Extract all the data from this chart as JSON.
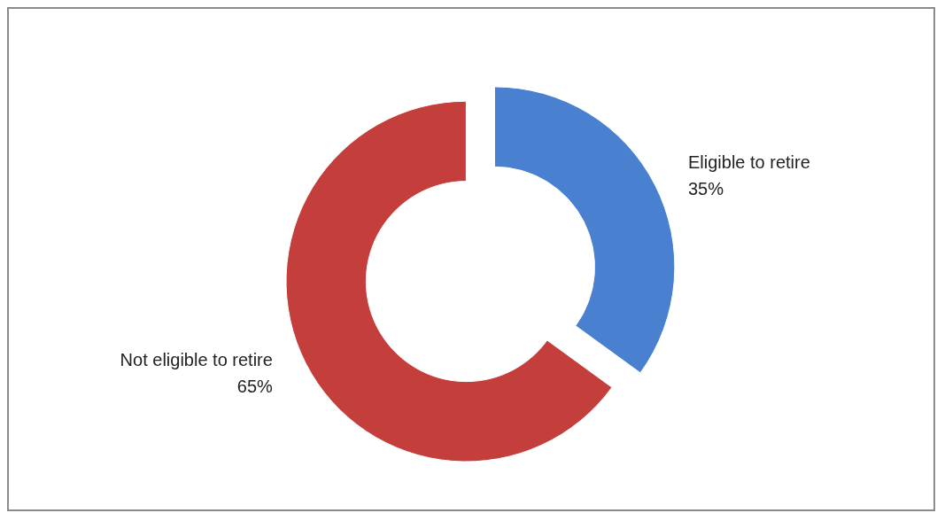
{
  "chart_data": {
    "type": "donut",
    "categories": [
      "Eligible to retire",
      "Not eligible to retire"
    ],
    "values": [
      35,
      65
    ],
    "colors": [
      "#4a80d0",
      "#c43f3c"
    ],
    "value_labels": [
      "35%",
      "65%"
    ],
    "legend": false
  }
}
